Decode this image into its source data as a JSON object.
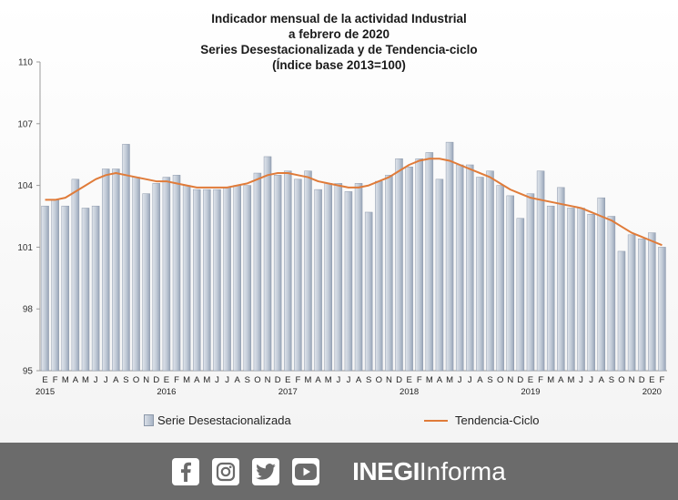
{
  "chart_data": {
    "type": "bar",
    "title_lines": [
      "Indicador mensual de la actividad Industrial",
      "a febrero de 2020",
      "Series Desestacionalizada  y de Tendencia-ciclo",
      "(Índice base 2013=100)"
    ],
    "ylim": [
      95,
      110
    ],
    "yticks": [
      95,
      98,
      101,
      104,
      107,
      110
    ],
    "month_labels": [
      "E",
      "F",
      "M",
      "A",
      "M",
      "J",
      "J",
      "A",
      "S",
      "O",
      "N",
      "D"
    ],
    "year_labels": [
      "2015",
      "2016",
      "2017",
      "2018",
      "2019",
      "2020"
    ],
    "categories_start": "2015-01",
    "categories_end": "2020-02",
    "series": [
      {
        "name": "Serie Desestacionalizada",
        "kind": "bar",
        "color": "#b4bfcd",
        "values": [
          103.0,
          103.3,
          103.0,
          104.3,
          102.9,
          103.0,
          104.8,
          104.8,
          106.0,
          104.4,
          103.6,
          104.1,
          104.4,
          104.5,
          104.0,
          103.8,
          103.8,
          103.8,
          103.9,
          104.0,
          104.0,
          104.6,
          105.4,
          104.5,
          104.7,
          104.3,
          104.7,
          103.8,
          104.1,
          104.1,
          103.7,
          104.1,
          102.7,
          104.2,
          104.5,
          105.3,
          104.9,
          105.3,
          105.6,
          104.3,
          106.1,
          105.0,
          105.0,
          104.4,
          104.7,
          104.0,
          103.5,
          102.4,
          103.6,
          104.7,
          103.0,
          103.9,
          102.9,
          102.9,
          102.6,
          103.4,
          102.5,
          100.8,
          101.6,
          101.4,
          101.7,
          101.0
        ]
      },
      {
        "name": "Tendencia-Ciclo",
        "kind": "line",
        "color": "#e07b39",
        "values": [
          103.3,
          103.3,
          103.4,
          103.7,
          104.0,
          104.3,
          104.5,
          104.6,
          104.5,
          104.4,
          104.3,
          104.2,
          104.2,
          104.1,
          104.0,
          103.9,
          103.9,
          103.9,
          103.9,
          104.0,
          104.1,
          104.3,
          104.5,
          104.6,
          104.6,
          104.5,
          104.4,
          104.2,
          104.1,
          104.0,
          103.9,
          103.9,
          104.0,
          104.2,
          104.4,
          104.7,
          105.0,
          105.2,
          105.3,
          105.3,
          105.2,
          105.0,
          104.8,
          104.6,
          104.4,
          104.1,
          103.8,
          103.6,
          103.4,
          103.3,
          103.2,
          103.1,
          103.0,
          102.9,
          102.7,
          102.5,
          102.3,
          102.0,
          101.7,
          101.5,
          101.3,
          101.1
        ]
      }
    ],
    "legend_position": "bottom",
    "grid": false
  },
  "legend": {
    "bar_label": "Serie Desestacionalizada",
    "line_label": "Tendencia-Ciclo"
  },
  "footer": {
    "icons": [
      "facebook-icon",
      "instagram-icon",
      "twitter-icon",
      "youtube-icon"
    ],
    "brand_strong": "INEGI",
    "brand_light": "Informa",
    "background": "#6b6b6b"
  }
}
